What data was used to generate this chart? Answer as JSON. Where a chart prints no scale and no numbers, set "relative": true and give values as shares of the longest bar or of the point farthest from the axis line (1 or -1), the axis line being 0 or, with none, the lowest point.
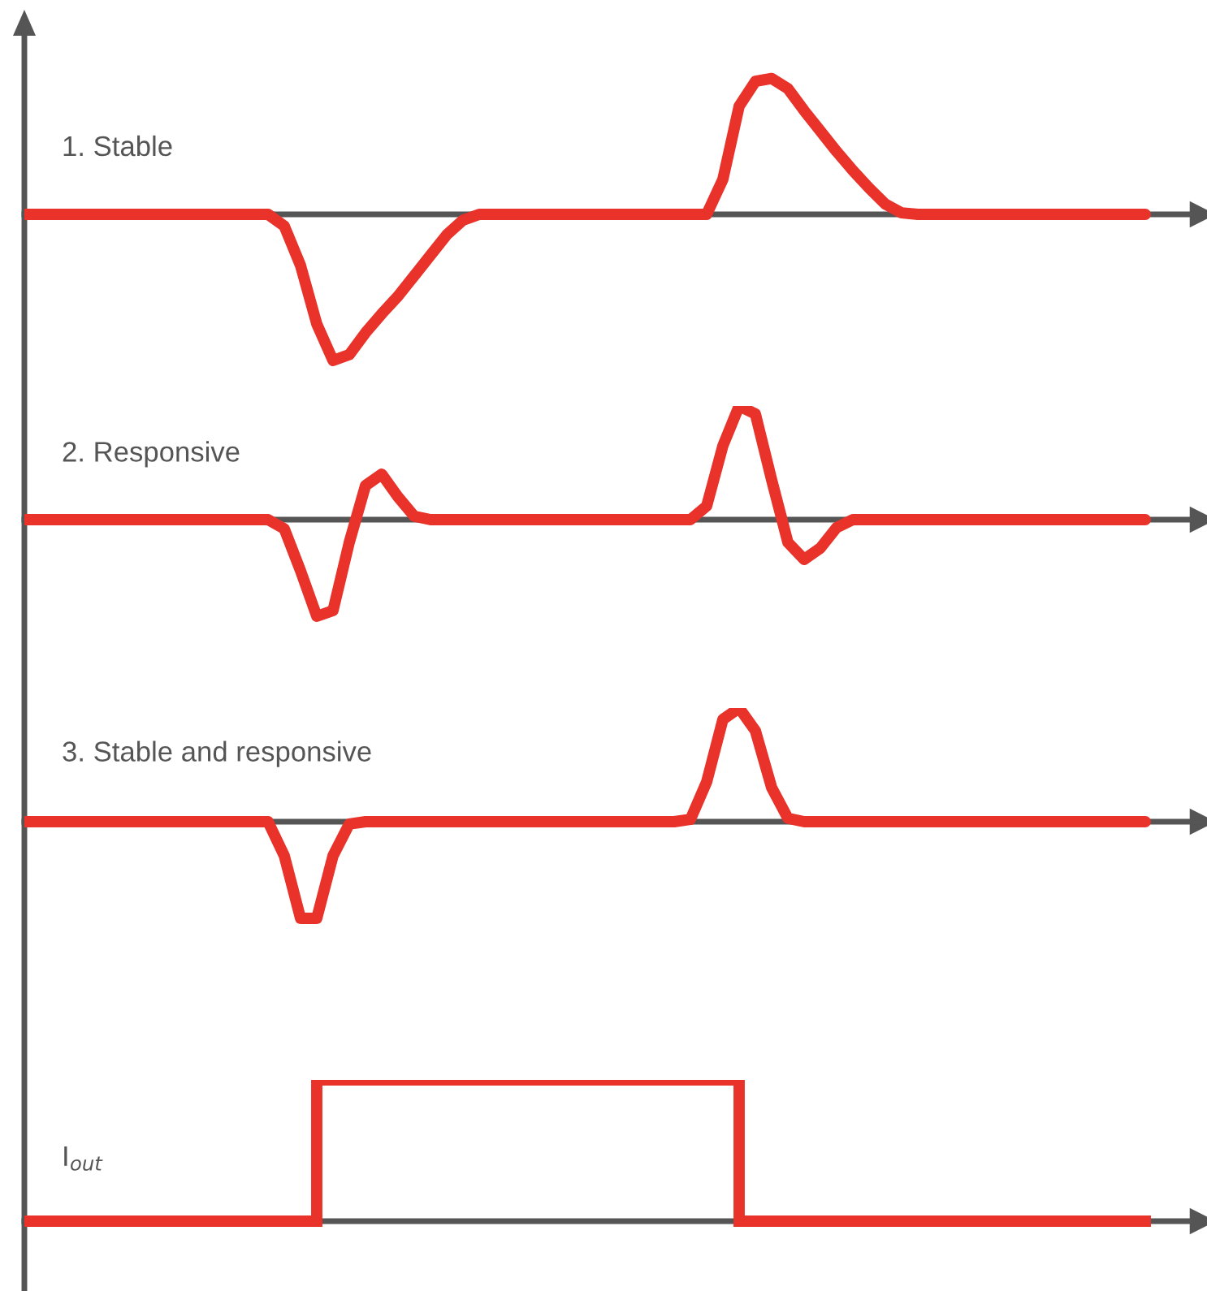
{
  "chart_data": [
    {
      "type": "line",
      "title": "1. Stable",
      "relative": true,
      "color": "#e8322a",
      "categories": [
        null,
        null,
        null,
        null,
        null,
        null,
        null,
        null,
        null,
        null,
        null,
        null,
        null,
        null,
        null,
        null,
        null,
        null,
        null,
        null,
        null,
        null,
        null,
        null,
        null,
        null,
        null,
        null,
        null,
        null,
        null,
        null,
        null,
        null,
        null,
        null,
        null,
        null,
        null,
        null,
        null,
        null,
        null,
        null,
        null,
        null,
        null,
        null,
        null,
        null,
        null,
        null,
        null,
        null,
        null,
        null,
        null,
        null,
        null,
        null,
        null,
        null,
        null,
        null,
        null,
        null,
        null,
        null,
        null,
        null
      ],
      "values": [
        0,
        0,
        0,
        0,
        0,
        0,
        0,
        0,
        0,
        0,
        0,
        0,
        0,
        0,
        0,
        0,
        -0.08,
        -0.35,
        -0.75,
        -1,
        -0.96,
        -0.81,
        -0.68,
        -0.56,
        -0.42,
        -0.28,
        -0.14,
        -0.04,
        0,
        0,
        0,
        0,
        0,
        0,
        0,
        0,
        0,
        0,
        0,
        0,
        0,
        0,
        0,
        0.24,
        0.74,
        0.91,
        0.93,
        0.86,
        0.71,
        0.57,
        0.43,
        0.3,
        0.18,
        0.07,
        0.01,
        0,
        0,
        0,
        0,
        0,
        0,
        0,
        0,
        0,
        0,
        0,
        0,
        0,
        0,
        0
      ]
    },
    {
      "type": "line",
      "title": "2. Responsive",
      "relative": true,
      "color": "#e8322a",
      "categories": [
        null,
        null,
        null,
        null,
        null,
        null,
        null,
        null,
        null,
        null,
        null,
        null,
        null,
        null,
        null,
        null,
        null,
        null,
        null,
        null,
        null,
        null,
        null,
        null,
        null,
        null,
        null,
        null,
        null,
        null,
        null,
        null,
        null,
        null,
        null,
        null,
        null,
        null,
        null,
        null,
        null,
        null,
        null,
        null,
        null,
        null,
        null,
        null,
        null,
        null,
        null,
        null,
        null,
        null,
        null,
        null,
        null,
        null,
        null,
        null,
        null,
        null,
        null,
        null,
        null,
        null,
        null,
        null,
        null,
        null
      ],
      "values": [
        0,
        0,
        0,
        0,
        0,
        0,
        0,
        0,
        0,
        0,
        0,
        0,
        0,
        0,
        0,
        0,
        -0.08,
        -0.45,
        -0.85,
        -0.8,
        -0.2,
        0.3,
        0.4,
        0.2,
        0.03,
        0,
        0,
        0,
        0,
        0,
        0,
        0,
        0,
        0,
        0,
        0,
        0,
        0,
        0,
        0,
        0,
        0,
        0.12,
        0.65,
        1,
        0.93,
        0.35,
        -0.2,
        -0.35,
        -0.25,
        -0.07,
        0,
        0,
        0,
        0,
        0,
        0,
        0,
        0,
        0,
        0,
        0,
        0,
        0,
        0,
        0,
        0,
        0,
        0,
        0
      ]
    },
    {
      "type": "line",
      "title": "3. Stable and responsive",
      "relative": true,
      "color": "#e8322a",
      "categories": [
        null,
        null,
        null,
        null,
        null,
        null,
        null,
        null,
        null,
        null,
        null,
        null,
        null,
        null,
        null,
        null,
        null,
        null,
        null,
        null,
        null,
        null,
        null,
        null,
        null,
        null,
        null,
        null,
        null,
        null,
        null,
        null,
        null,
        null,
        null,
        null,
        null,
        null,
        null,
        null,
        null,
        null,
        null,
        null,
        null,
        null,
        null,
        null,
        null,
        null,
        null,
        null,
        null,
        null,
        null,
        null,
        null,
        null,
        null,
        null,
        null,
        null,
        null,
        null,
        null,
        null,
        null,
        null,
        null,
        null
      ],
      "values": [
        0,
        0,
        0,
        0,
        0,
        0,
        0,
        0,
        0,
        0,
        0,
        0,
        0,
        0,
        0,
        0,
        -0.3,
        -0.85,
        -0.85,
        -0.3,
        -0.02,
        0,
        0,
        0,
        0,
        0,
        0,
        0,
        0,
        0,
        0,
        0,
        0,
        0,
        0,
        0,
        0,
        0,
        0,
        0,
        0,
        0.02,
        0.35,
        0.9,
        1,
        0.8,
        0.3,
        0.03,
        0,
        0,
        0,
        0,
        0,
        0,
        0,
        0,
        0,
        0,
        0,
        0,
        0,
        0,
        0,
        0,
        0,
        0,
        0,
        0,
        0,
        0
      ]
    },
    {
      "type": "step",
      "annotations": [
        "I$_{out}$"
      ],
      "relative": true,
      "color": "#e8322a",
      "categories": [
        null,
        null,
        null,
        null,
        null,
        null,
        null,
        null,
        null,
        null,
        null,
        null,
        null,
        null,
        null,
        null,
        null,
        null,
        null,
        null,
        null,
        null,
        null,
        null,
        null,
        null,
        null,
        null,
        null,
        null,
        null,
        null,
        null,
        null,
        null,
        null,
        null,
        null,
        null,
        null,
        null,
        null,
        null,
        null,
        null,
        null,
        null,
        null,
        null,
        null,
        null,
        null,
        null,
        null,
        null,
        null,
        null,
        null,
        null,
        null,
        null,
        null,
        null,
        null,
        null,
        null,
        null,
        null,
        null,
        null
      ],
      "values": [
        0,
        0,
        0,
        0,
        0,
        0,
        0,
        0,
        0,
        0,
        0,
        0,
        0,
        0,
        0,
        0,
        0,
        0,
        1,
        1,
        1,
        1,
        1,
        1,
        1,
        1,
        1,
        1,
        1,
        1,
        1,
        1,
        1,
        1,
        1,
        1,
        1,
        1,
        1,
        1,
        1,
        1,
        1,
        1,
        0,
        0,
        0,
        0,
        0,
        0,
        0,
        0,
        0,
        0,
        0,
        0,
        0,
        0,
        0,
        0,
        0,
        0,
        0,
        0,
        0,
        0,
        0,
        0,
        0,
        0
      ]
    }
  ]
}
